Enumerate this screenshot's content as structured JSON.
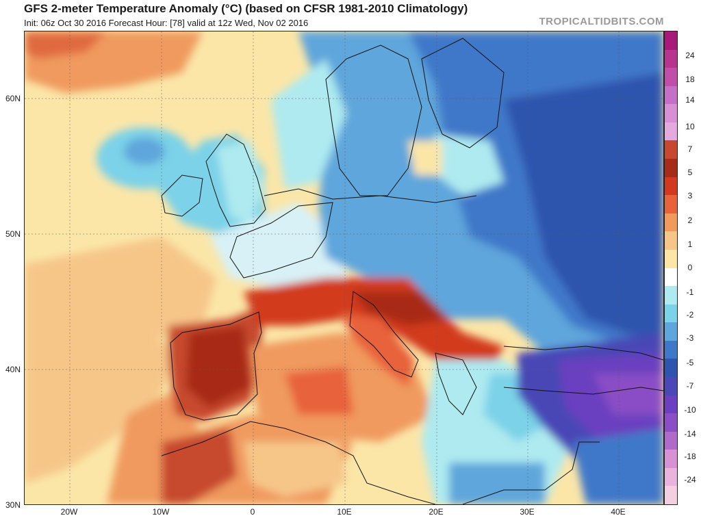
{
  "header": {
    "title": "GFS 2-meter Temperature Anomaly (°C) (based on CFSR 1981-2010 Climatology)",
    "subtitle": "Init: 06z Oct 30 2016   Forecast Hour: [78]   valid at 12z Wed, Nov 02 2016",
    "watermark": "TROPICALTIDBITS.COM"
  },
  "axes": {
    "latitudes": [
      {
        "label": "60N",
        "value": 60
      },
      {
        "label": "50N",
        "value": 50
      },
      {
        "label": "40N",
        "value": 40
      },
      {
        "label": "30N",
        "value": 30
      }
    ],
    "longitudes": [
      {
        "label": "20W",
        "value": -20
      },
      {
        "label": "10W",
        "value": -10
      },
      {
        "label": "0",
        "value": 0
      },
      {
        "label": "10E",
        "value": 10
      },
      {
        "label": "20E",
        "value": 20
      },
      {
        "label": "30E",
        "value": 30
      },
      {
        "label": "40E",
        "value": 40
      }
    ]
  },
  "colorbar": {
    "labels": [
      "24",
      "18",
      "14",
      "10",
      "7",
      "5",
      "3",
      "2",
      "1",
      "0",
      "-1",
      "-2",
      "-3",
      "-5",
      "-7",
      "-10",
      "-14",
      "-18",
      "-24"
    ],
    "colors": [
      "#a8197a",
      "#b7358f",
      "#c04faa",
      "#c66fc7",
      "#d88fd4",
      "#e6a9de",
      "#c7482f",
      "#a82a18",
      "#d23a1f",
      "#e8623a",
      "#f09a5e",
      "#f6c689",
      "#fbe6a8",
      "#ffffff",
      "#aeeaf0",
      "#7cd2e8",
      "#5ea6dc",
      "#3f78c9",
      "#2d55ae",
      "#4a47b6",
      "#6a3fc0",
      "#8a4ec6",
      "#b06ac9",
      "#d891d3",
      "#eab3db",
      "#f4cfe2"
    ]
  },
  "regions": {
    "atlantic_warm": "#fbe6a8",
    "iberia_hot": "#c7482f",
    "east_cold": "#2f5fb5",
    "anatolia_very_cold": "#6a4fc4"
  }
}
